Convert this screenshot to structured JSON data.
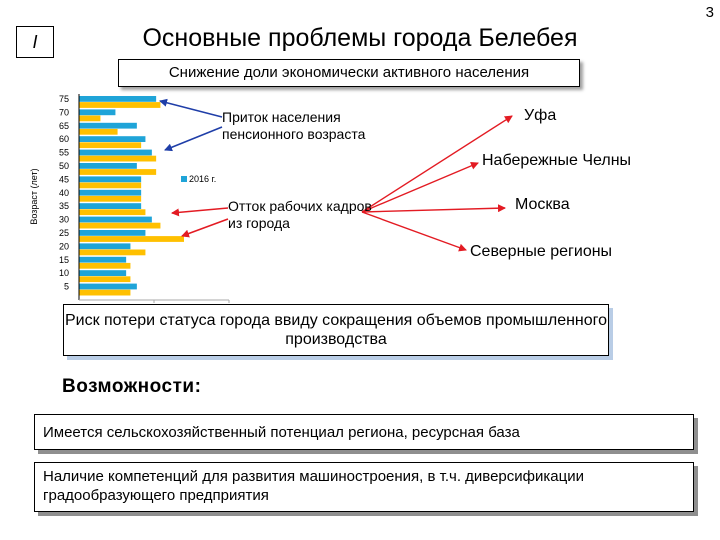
{
  "page_number": "3",
  "section_badge": "I",
  "title": "Основные проблемы города Белебея",
  "population_banner": "Снижение доли экономически активного населения",
  "annotations": {
    "pension_inflow": "Приток населения пенсионного возраста",
    "workforce_outflow": "Отток рабочих кадров из города"
  },
  "destinations": [
    "Уфа",
    "Набережные Челны",
    "Москва",
    "Северные регионы"
  ],
  "risk_box": "Риск потери статуса города ввиду сокращения объемов промышленного производства",
  "opportunities": {
    "heading": "Возможности:",
    "items": [
      "Имеется сельскохозяйственный потенциал региона, ресурсная база",
      "Наличие компетенций для развития машиностроения, в т.ч. диверсификации градообразующего предприятия"
    ]
  },
  "colors": {
    "series_2016": "#1fa4d8",
    "series_other": "#ffc000",
    "arrow_blue": "#1f3ea8",
    "arrow_red": "#e31b23"
  },
  "chart_data": {
    "type": "bar",
    "orientation": "horizontal",
    "ylabel": "Возраст (лет)",
    "categories": [
      "75",
      "70",
      "65",
      "60",
      "55",
      "50",
      "45",
      "40",
      "35",
      "30",
      "25",
      "20",
      "15",
      "10",
      "5"
    ],
    "series": [
      {
        "name": "2016 г.",
        "values": [
          3.6,
          1.7,
          2.7,
          3.1,
          3.4,
          2.7,
          2.9,
          2.9,
          2.9,
          3.4,
          3.1,
          2.4,
          2.2,
          2.2,
          2.7
        ]
      },
      {
        "name": "",
        "values": [
          3.8,
          1.0,
          1.8,
          2.9,
          3.6,
          3.6,
          2.9,
          2.9,
          3.1,
          3.8,
          4.9,
          3.1,
          2.4,
          2.4,
          2.4
        ]
      }
    ],
    "xlim": [
      0,
      7
    ],
    "legend": "middle-right"
  }
}
